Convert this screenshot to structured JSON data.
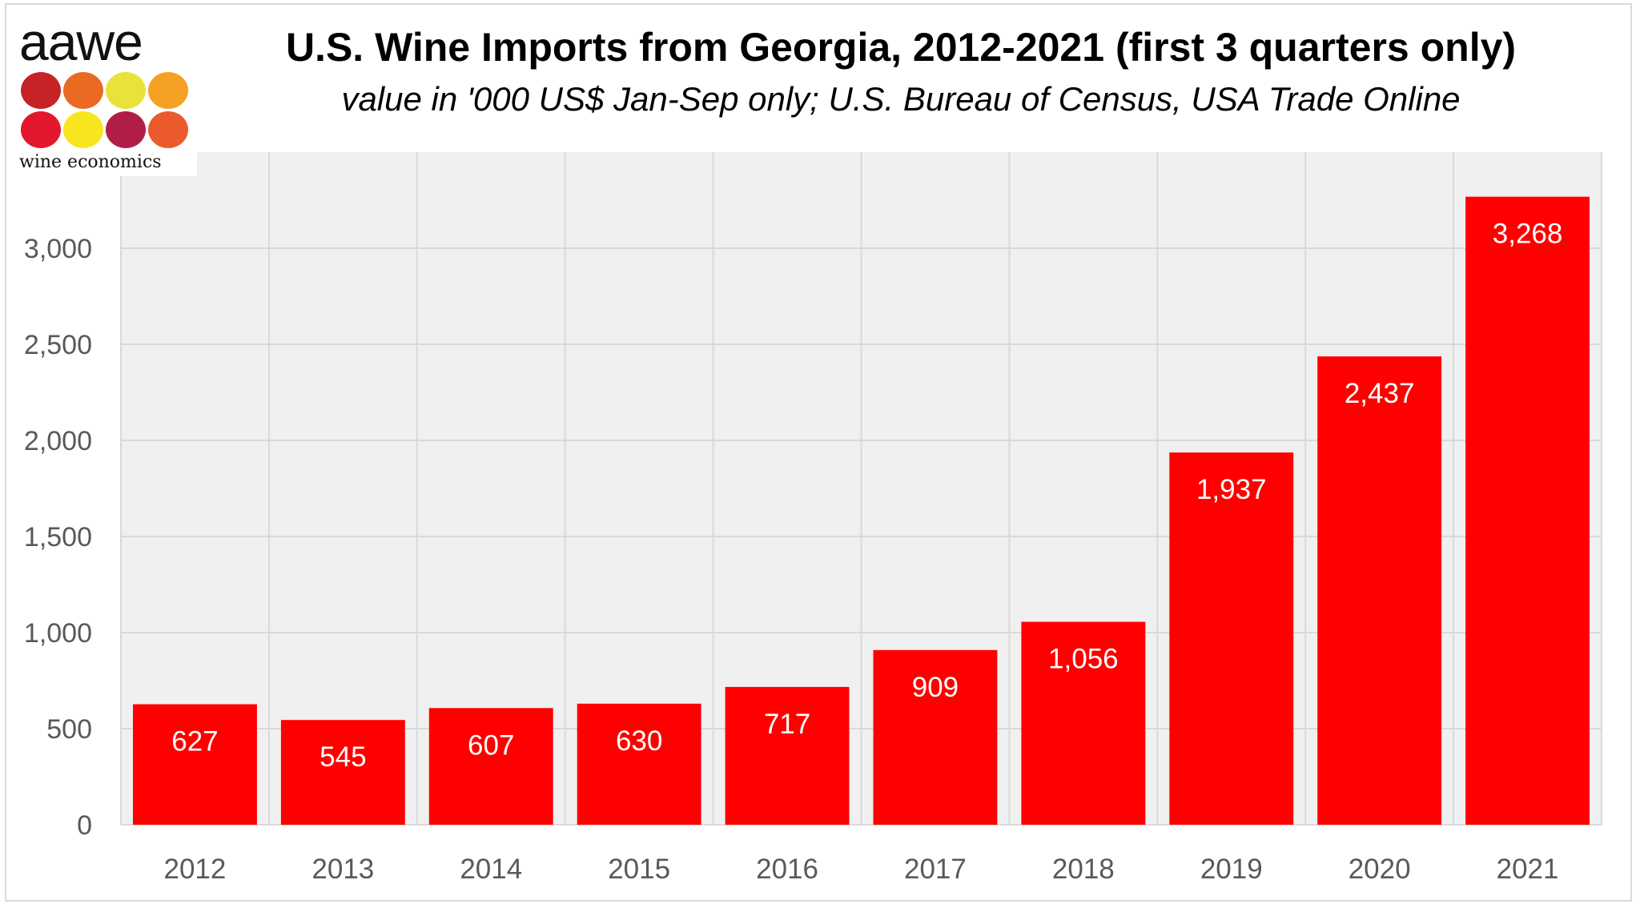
{
  "logo": {
    "word": "aawe",
    "tagline": "wine economics",
    "dot_colors": [
      "#c62327",
      "#ea6a24",
      "#e8e23a",
      "#f5a123",
      "#e3182c",
      "#f7e61f",
      "#b01e47",
      "#eb5a2d"
    ]
  },
  "title": "U.S. Wine Imports from Georgia, 2012-2021 (first 3 quarters only)",
  "subtitle": "value in '000 US$ Jan-Sep only; U.S. Bureau of Census, USA Trade Online",
  "chart_data": {
    "type": "bar",
    "title": "U.S. Wine Imports from Georgia, 2012-2021 (first 3 quarters only)",
    "subtitle": "value in '000 US$ Jan-Sep only; U.S. Bureau of Census, USA Trade Online",
    "categories": [
      "2012",
      "2013",
      "2014",
      "2015",
      "2016",
      "2017",
      "2018",
      "2019",
      "2020",
      "2021"
    ],
    "values": [
      627,
      545,
      607,
      630,
      717,
      909,
      1056,
      1937,
      2437,
      3268
    ],
    "data_labels": [
      "627",
      "545",
      "607",
      "630",
      "717",
      "909",
      "1,056",
      "1,937",
      "2,437",
      "3,268"
    ],
    "ylim": [
      0,
      3500
    ],
    "yticks": [
      0,
      500,
      1000,
      1500,
      2000,
      2500,
      3000
    ],
    "ytick_labels": [
      "0",
      "500",
      "1,000",
      "1,500",
      "2,000",
      "2,500",
      "3,000"
    ],
    "grid": true,
    "bar_color": "#ff0000",
    "plot_background": "#f0f0f0"
  }
}
